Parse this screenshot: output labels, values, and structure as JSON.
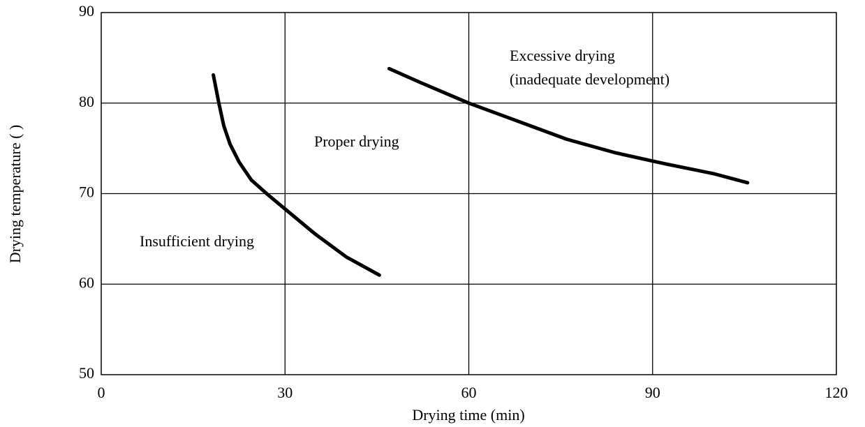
{
  "chart_data": {
    "type": "line",
    "xlabel": "Drying time (min)",
    "ylabel": "Drying temperature (  )",
    "annotations": [
      "Excessive drying",
      "(inadequate development)",
      "Proper drying",
      "Insufficient drying"
    ],
    "series": [
      {
        "color": "#000000",
        "x": [
          18.3,
          19.2,
          20,
          21,
          22.5,
          24.5,
          27,
          30,
          35,
          40,
          45.4
        ],
        "values": [
          83.1,
          80,
          77.5,
          75.5,
          73.5,
          71.5,
          70,
          68.3,
          65.5,
          63,
          61
        ]
      },
      {
        "color": "#000000",
        "x": [
          47,
          52,
          60,
          68,
          76,
          84,
          92,
          100,
          105.5
        ],
        "values": [
          83.8,
          82.3,
          80,
          78,
          76,
          74.5,
          73.3,
          72.2,
          71.2
        ]
      }
    ],
    "xlim": [
      0,
      120
    ],
    "xticks": [
      0,
      30,
      60,
      90,
      120
    ],
    "ylim": [
      50,
      90
    ],
    "yticks": [
      50,
      60,
      70,
      80,
      90
    ],
    "grid": true
  }
}
